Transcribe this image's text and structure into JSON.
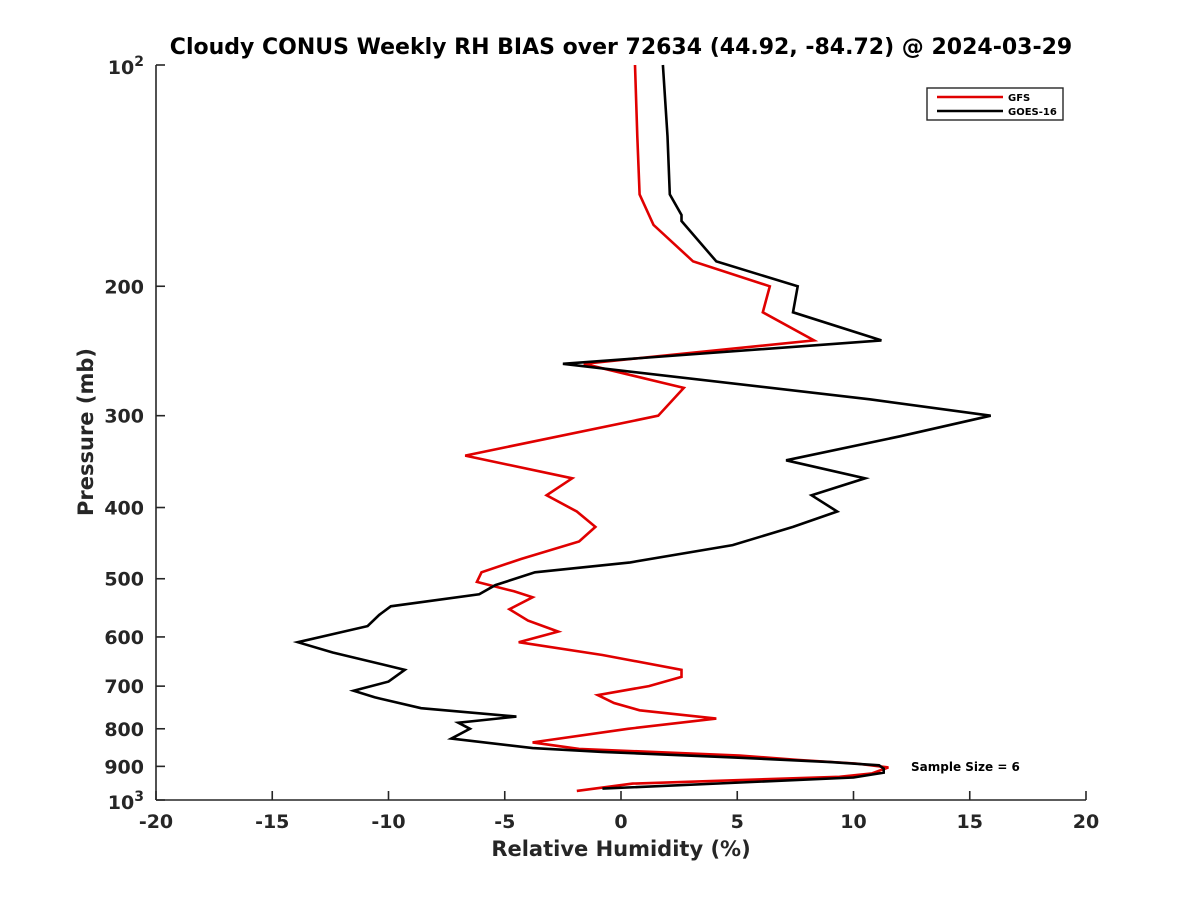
{
  "chart_data": {
    "type": "line",
    "title": "Cloudy CONUS Weekly RH BIAS over 72634 (44.92, -84.72) @ 2024-03-29",
    "xlabel": "Relative Humidity (%)",
    "ylabel": "Pressure (mb)",
    "xlim": [
      -20,
      20
    ],
    "ylim": [
      100,
      1000
    ],
    "y_scale": "log",
    "y_reversed": true,
    "x_ticks": [
      "-20",
      "-15",
      "-10",
      "-5",
      "0",
      "5",
      "10",
      "15",
      "20"
    ],
    "y_ticks": [
      {
        "value": 100,
        "base": "10",
        "exp": "2"
      },
      {
        "value": 200,
        "label": "200"
      },
      {
        "value": 300,
        "label": "300"
      },
      {
        "value": 400,
        "label": "400"
      },
      {
        "value": 500,
        "label": "500"
      },
      {
        "value": 600,
        "label": "600"
      },
      {
        "value": 700,
        "label": "700"
      },
      {
        "value": 800,
        "label": "800"
      },
      {
        "value": 900,
        "label": "900"
      },
      {
        "value": 1000,
        "base": "10",
        "exp": "3"
      }
    ],
    "legend_position": "top-right",
    "grid": false,
    "annotation": "Sample Size = 6",
    "series": [
      {
        "name": "GFS",
        "color": "#e00000",
        "points": [
          [
            0.6,
            100
          ],
          [
            0.7,
            125
          ],
          [
            0.8,
            150
          ],
          [
            1.4,
            165
          ],
          [
            3.1,
            185
          ],
          [
            6.4,
            200
          ],
          [
            6.1,
            217
          ],
          [
            8.3,
            237
          ],
          [
            -1.6,
            255
          ],
          [
            2.7,
            275
          ],
          [
            1.6,
            300
          ],
          [
            -6.7,
            340
          ],
          [
            -2.1,
            365
          ],
          [
            -3.2,
            385
          ],
          [
            -1.9,
            405
          ],
          [
            -1.1,
            425
          ],
          [
            -1.8,
            445
          ],
          [
            -4.3,
            470
          ],
          [
            -6.0,
            490
          ],
          [
            -6.2,
            505
          ],
          [
            -4.6,
            520
          ],
          [
            -3.8,
            530
          ],
          [
            -4.8,
            550
          ],
          [
            -4.0,
            570
          ],
          [
            -2.7,
            590
          ],
          [
            -4.4,
            610
          ],
          [
            -0.8,
            635
          ],
          [
            2.6,
            665
          ],
          [
            2.6,
            680
          ],
          [
            1.2,
            700
          ],
          [
            -1.0,
            720
          ],
          [
            -0.3,
            738
          ],
          [
            0.8,
            755
          ],
          [
            4.1,
            775
          ],
          [
            0.3,
            800
          ],
          [
            -3.8,
            835
          ],
          [
            -1.8,
            852
          ],
          [
            5.1,
            870
          ],
          [
            7.6,
            882
          ],
          [
            10.1,
            892
          ],
          [
            11.5,
            903
          ],
          [
            10.8,
            920
          ],
          [
            9.4,
            930
          ],
          [
            0.5,
            950
          ],
          [
            -1.9,
            972
          ]
        ]
      },
      {
        "name": "GOES-16",
        "color": "#000000",
        "points": [
          [
            1.8,
            100
          ],
          [
            2.0,
            125
          ],
          [
            2.1,
            150
          ],
          [
            2.6,
            160
          ],
          [
            2.6,
            163
          ],
          [
            4.1,
            185
          ],
          [
            7.6,
            200
          ],
          [
            7.4,
            217
          ],
          [
            11.2,
            237
          ],
          [
            -2.5,
            255
          ],
          [
            10.7,
            285
          ],
          [
            15.9,
            300
          ],
          [
            12.0,
            320
          ],
          [
            7.1,
            345
          ],
          [
            10.5,
            365
          ],
          [
            8.2,
            385
          ],
          [
            9.3,
            405
          ],
          [
            7.4,
            425
          ],
          [
            4.8,
            450
          ],
          [
            0.4,
            475
          ],
          [
            -3.7,
            490
          ],
          [
            -5.4,
            510
          ],
          [
            -6.1,
            525
          ],
          [
            -9.9,
            545
          ],
          [
            -10.4,
            560
          ],
          [
            -10.9,
            580
          ],
          [
            -13.9,
            610
          ],
          [
            -12.4,
            630
          ],
          [
            -9.3,
            665
          ],
          [
            -10.0,
            690
          ],
          [
            -11.5,
            710
          ],
          [
            -10.6,
            725
          ],
          [
            -8.6,
            750
          ],
          [
            -4.5,
            770
          ],
          [
            -7.0,
            785
          ],
          [
            -6.5,
            800
          ],
          [
            -7.3,
            825
          ],
          [
            -3.8,
            850
          ],
          [
            -0.8,
            860
          ],
          [
            4.8,
            875
          ],
          [
            9.0,
            888
          ],
          [
            11.1,
            897
          ],
          [
            11.3,
            906
          ],
          [
            11.3,
            918
          ],
          [
            10.0,
            932
          ],
          [
            -0.8,
            965
          ]
        ]
      }
    ]
  }
}
